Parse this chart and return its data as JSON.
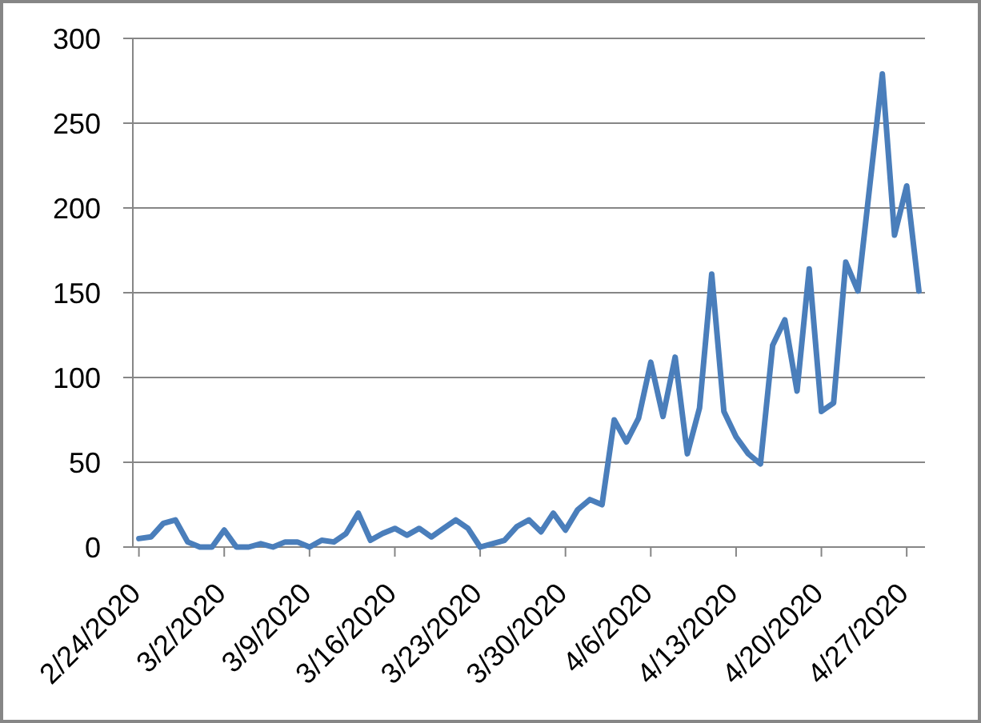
{
  "chart_data": {
    "type": "line",
    "x": [
      "2020-02-24",
      "2020-02-25",
      "2020-02-26",
      "2020-02-27",
      "2020-02-28",
      "2020-02-29",
      "2020-03-01",
      "2020-03-02",
      "2020-03-03",
      "2020-03-04",
      "2020-03-05",
      "2020-03-06",
      "2020-03-07",
      "2020-03-08",
      "2020-03-09",
      "2020-03-10",
      "2020-03-11",
      "2020-03-12",
      "2020-03-13",
      "2020-03-14",
      "2020-03-15",
      "2020-03-16",
      "2020-03-17",
      "2020-03-18",
      "2020-03-19",
      "2020-03-20",
      "2020-03-21",
      "2020-03-22",
      "2020-03-23",
      "2020-03-24",
      "2020-03-25",
      "2020-03-26",
      "2020-03-27",
      "2020-03-28",
      "2020-03-29",
      "2020-03-30",
      "2020-03-31",
      "2020-04-01",
      "2020-04-02",
      "2020-04-03",
      "2020-04-04",
      "2020-04-05",
      "2020-04-06",
      "2020-04-07",
      "2020-04-08",
      "2020-04-09",
      "2020-04-10",
      "2020-04-11",
      "2020-04-12",
      "2020-04-13",
      "2020-04-14",
      "2020-04-15",
      "2020-04-16",
      "2020-04-17",
      "2020-04-18",
      "2020-04-19",
      "2020-04-20",
      "2020-04-21",
      "2020-04-22",
      "2020-04-23",
      "2020-04-24",
      "2020-04-25",
      "2020-04-26",
      "2020-04-27",
      "2020-04-28"
    ],
    "series": [
      {
        "color": "#4a7ebb",
        "values": [
          5,
          6,
          14,
          16,
          3,
          0,
          0,
          10,
          0,
          0,
          2,
          0,
          3,
          3,
          0,
          4,
          3,
          8,
          20,
          4,
          8,
          11,
          7,
          11,
          6,
          11,
          16,
          11,
          0,
          2,
          4,
          12,
          16,
          9,
          20,
          10,
          22,
          28,
          25,
          75,
          62,
          76,
          109,
          77,
          112,
          55,
          82,
          161,
          80,
          65,
          55,
          49,
          119,
          134,
          92,
          164,
          80,
          85,
          168,
          151,
          215,
          279,
          184,
          213,
          151
        ]
      }
    ],
    "xlim": [
      "2020-02-23T12:00",
      "2020-04-28T12:00"
    ],
    "xticks": [
      {
        "value": "2020-02-24",
        "label": "2/24/2020"
      },
      {
        "value": "2020-03-02",
        "label": "3/2/2020"
      },
      {
        "value": "2020-03-09",
        "label": "3/9/2020"
      },
      {
        "value": "2020-03-16",
        "label": "3/16/2020"
      },
      {
        "value": "2020-03-23",
        "label": "3/23/2020"
      },
      {
        "value": "2020-03-30",
        "label": "3/30/2020"
      },
      {
        "value": "2020-04-06",
        "label": "4/6/2020"
      },
      {
        "value": "2020-04-13",
        "label": "4/13/2020"
      },
      {
        "value": "2020-04-20",
        "label": "4/20/2020"
      },
      {
        "value": "2020-04-27",
        "label": "4/27/2020"
      }
    ],
    "ylim": [
      0,
      300
    ],
    "yticks": [
      0,
      50,
      100,
      150,
      200,
      250,
      300
    ],
    "grid": "y",
    "line_style": "solid"
  }
}
